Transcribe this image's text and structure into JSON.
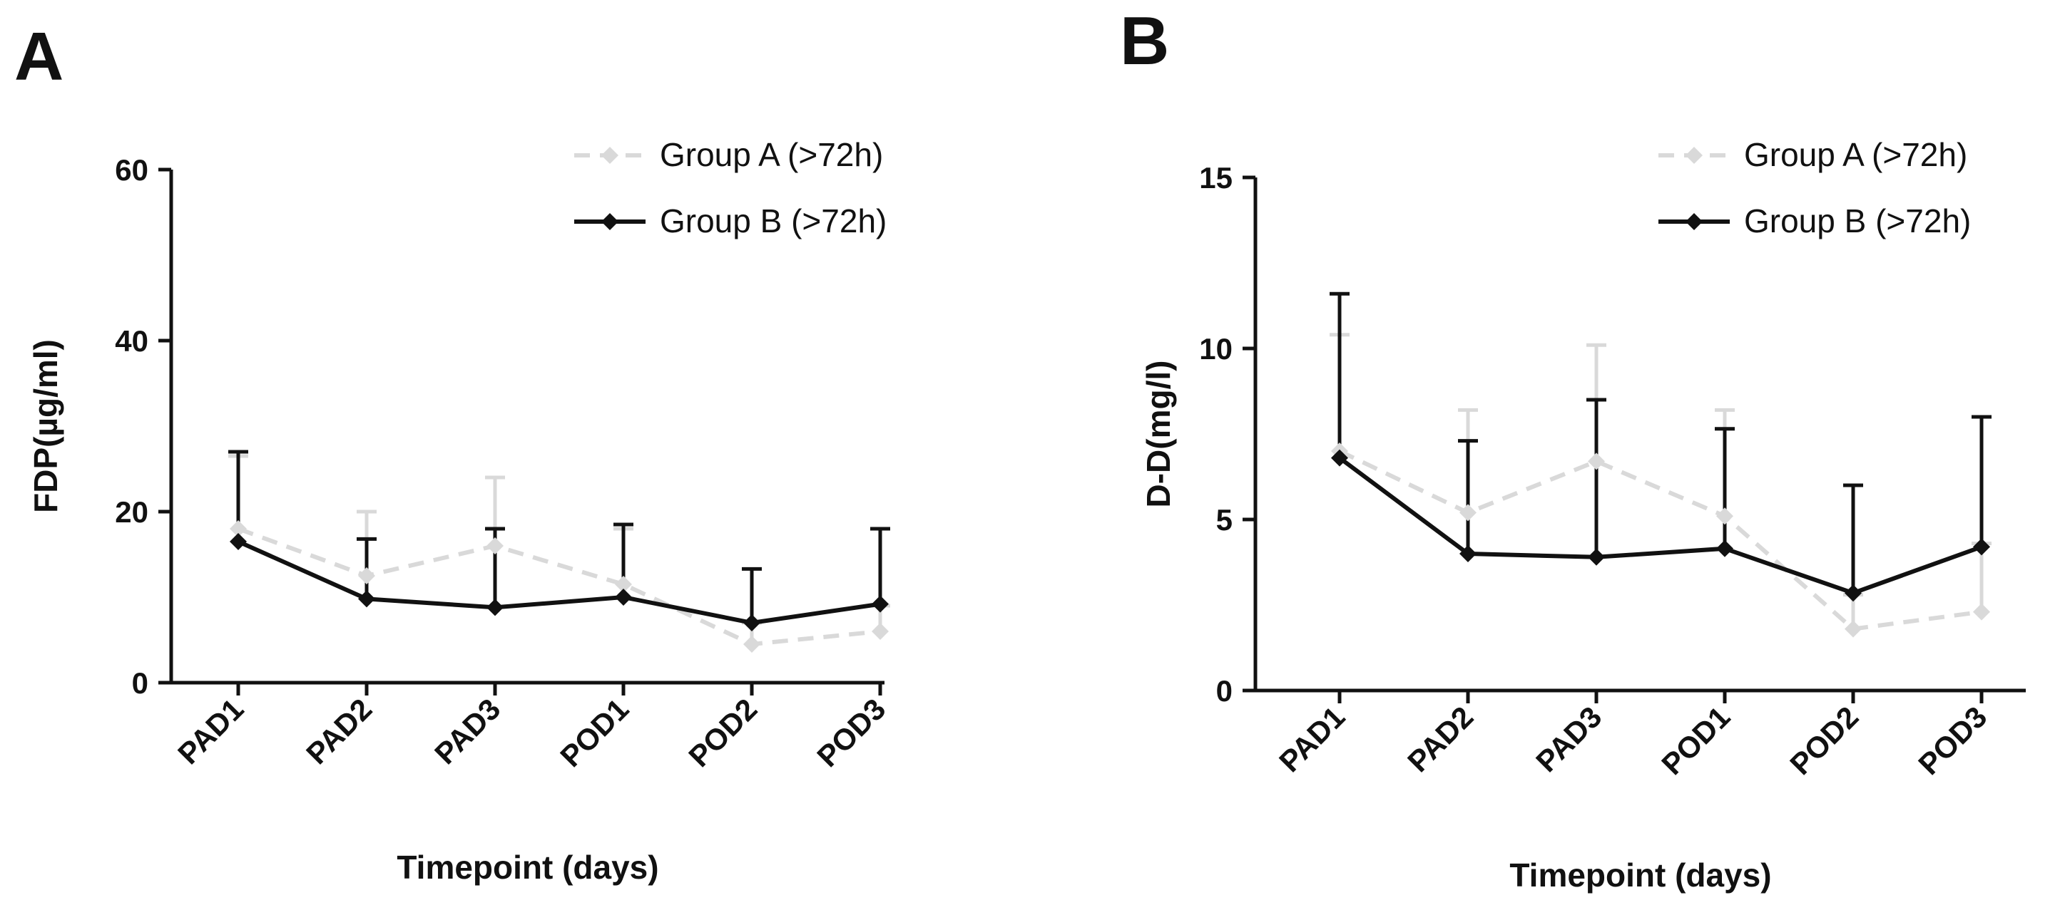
{
  "colors": {
    "group_a": "#d9d9d9",
    "group_b": "#111111",
    "axis": "#111111"
  },
  "chart_data": [
    {
      "panel_label": "A",
      "type": "line",
      "title": "",
      "xlabel": "Timepoint (days)",
      "ylabel": "FDP(µg/ml)",
      "categories": [
        "PAD1",
        "PAD2",
        "PAD3",
        "POD1",
        "POD2",
        "POD3"
      ],
      "ylim": [
        0,
        60
      ],
      "yticks": [
        0,
        20,
        40,
        60
      ],
      "legend_position": "top-right",
      "series": [
        {
          "name": "Group A (>72h)",
          "style": "dashed",
          "marker": "diamond",
          "values": [
            18.0,
            12.5,
            16.0,
            11.5,
            4.5,
            6.0
          ],
          "err_upper": [
            26.5,
            20.0,
            24.0,
            18.0,
            7.0,
            9.0
          ]
        },
        {
          "name": "Group B (>72h)",
          "style": "solid",
          "marker": "diamond",
          "values": [
            16.5,
            9.8,
            8.8,
            10.0,
            7.0,
            9.2
          ],
          "err_upper": [
            27.0,
            16.8,
            18.0,
            18.5,
            13.3,
            18.0
          ]
        }
      ]
    },
    {
      "panel_label": "B",
      "type": "line",
      "title": "",
      "xlabel": "Timepoint (days)",
      "ylabel": "D-D(mg/l)",
      "categories": [
        "PAD1",
        "PAD2",
        "PAD3",
        "POD1",
        "POD2",
        "POD3"
      ],
      "ylim": [
        0,
        15
      ],
      "yticks": [
        0,
        5,
        10,
        15
      ],
      "legend_position": "top-right",
      "series": [
        {
          "name": "Group A (>72h)",
          "style": "dashed",
          "marker": "diamond",
          "values": [
            7.0,
            5.2,
            6.7,
            5.1,
            1.8,
            2.3
          ],
          "err_upper": [
            10.4,
            8.2,
            10.1,
            8.2,
            2.8,
            4.3
          ]
        },
        {
          "name": "Group B (>72h)",
          "style": "solid",
          "marker": "diamond",
          "values": [
            6.8,
            4.0,
            3.9,
            4.15,
            2.85,
            4.2
          ],
          "err_upper": [
            11.6,
            7.3,
            8.5,
            7.65,
            6.0,
            8.0
          ]
        }
      ]
    }
  ]
}
